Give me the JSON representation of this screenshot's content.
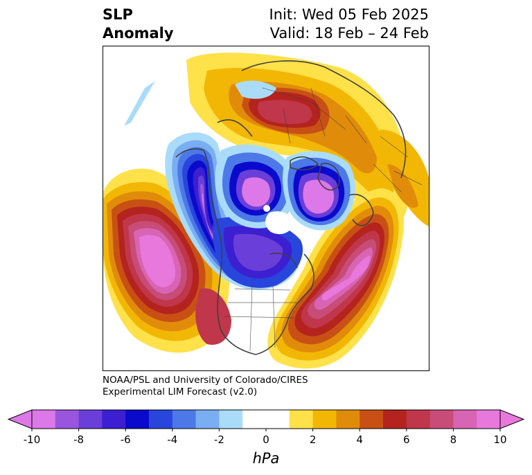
{
  "title": {
    "left_line1": "SLP",
    "left_line2": "Anomaly",
    "right_line1": "Init: Wed 05 Feb 2025",
    "right_line2": "Valid: 18 Feb – 24 Feb"
  },
  "credits": {
    "line1": "NOAA/PSL and University of Colorado/CIRES",
    "line2": "Experimental LIM Forecast (v2.0)"
  },
  "colorbar": {
    "unit": "hPa",
    "tick_labels": [
      "-10",
      "-8",
      "-6",
      "-4",
      "-2",
      "0",
      "2",
      "4",
      "6",
      "8",
      "10"
    ],
    "range": [
      -10,
      10
    ],
    "colors": [
      "#dc78e8",
      "#9a55de",
      "#6a3ed8",
      "#3c1fd1",
      "#0a0acc",
      "#2845dc",
      "#4c78e8",
      "#7aaef2",
      "#aadcfa",
      "#ffffff",
      "#ffffff",
      "#ffe14a",
      "#f2b705",
      "#e08c0a",
      "#c85014",
      "#b4231e",
      "#c0364a",
      "#c84c78",
      "#d864b4",
      "#e878dc"
    ],
    "extend": "both"
  },
  "map": {
    "projection": "north-polar-stereographic",
    "features": [
      {
        "name": "north-pacific-positive-anomaly",
        "sign": "positive",
        "peak_hpa": 10
      },
      {
        "name": "north-atlantic-positive-anomaly",
        "sign": "positive",
        "peak_hpa": 10
      },
      {
        "name": "siberia-positive-anomaly",
        "sign": "positive",
        "peak_hpa": 8
      },
      {
        "name": "north-america-negative-anomaly",
        "sign": "negative",
        "peak_hpa": -10
      },
      {
        "name": "arctic-negative-anomaly",
        "sign": "negative",
        "peak_hpa": -10
      },
      {
        "name": "scandinavia-negative-anomaly",
        "sign": "negative",
        "peak_hpa": -10
      }
    ]
  }
}
